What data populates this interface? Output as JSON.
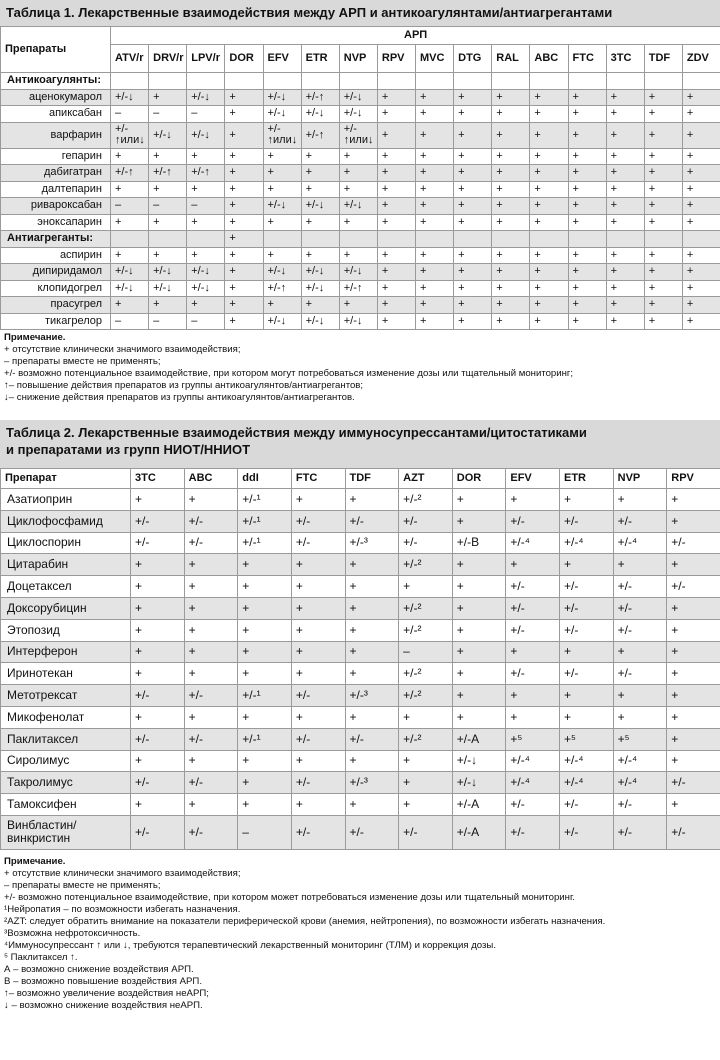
{
  "table1": {
    "title": "Таблица 1. Лекарственные взаимодействия между АРП и антикоагулянтами/антиагрегантами",
    "first_header": "Препараты",
    "group_header": "АРП",
    "columns": [
      "ATV/r",
      "DRV/r",
      "LPV/r",
      "DOR",
      "EFV",
      "ETR",
      "NVP",
      "RPV",
      "MVC",
      "DTG",
      "RAL",
      "ABC",
      "FTC",
      "3TC",
      "TDF",
      "ZDV"
    ],
    "rows": [
      {
        "label": "Антикоагулянты:",
        "section": true,
        "cells": [
          null,
          null,
          null,
          null,
          null,
          null,
          null,
          null,
          null,
          null,
          null,
          null,
          null,
          null,
          null,
          null
        ]
      },
      {
        "label": "аценокумарол",
        "cells": [
          "+/-↓",
          "+",
          "+/-↓",
          "+",
          "+/-↓",
          "+/-↑",
          "+/-↓",
          "+",
          "+",
          "+",
          "+",
          "+",
          "+",
          "+",
          "+",
          "+"
        ]
      },
      {
        "label": "апиксабан",
        "cells": [
          "–",
          "–",
          "–",
          "+",
          "+/-↓",
          "+/-↓",
          "+/-↓",
          "+",
          "+",
          "+",
          "+",
          "+",
          "+",
          "+",
          "+",
          "+"
        ]
      },
      {
        "label": "варфарин",
        "cells": [
          "+/-\n↑или↓",
          "+/-↓",
          "+/-↓",
          "+",
          "+/-\n↑или↓",
          "+/-↑",
          "+/-\n↑или↓",
          "+",
          "+",
          "+",
          "+",
          "+",
          "+",
          "+",
          "+",
          "+"
        ]
      },
      {
        "label": "гепарин",
        "cells": [
          "+",
          "+",
          "+",
          "+",
          "+",
          "+",
          "+",
          "+",
          "+",
          "+",
          "+",
          "+",
          "+",
          "+",
          "+",
          "+"
        ]
      },
      {
        "label": "дабигатран",
        "cells": [
          "+/-↑",
          "+/-↑",
          "+/-↑",
          "+",
          "+",
          "+",
          "+",
          "+",
          "+",
          "+",
          "+",
          "+",
          "+",
          "+",
          "+",
          "+"
        ]
      },
      {
        "label": "далтепарин",
        "cells": [
          "+",
          "+",
          "+",
          "+",
          "+",
          "+",
          "+",
          "+",
          "+",
          "+",
          "+",
          "+",
          "+",
          "+",
          "+",
          "+"
        ]
      },
      {
        "label": "ривароксабан",
        "cells": [
          "–",
          "–",
          "–",
          "+",
          "+/-↓",
          "+/-↓",
          "+/-↓",
          "+",
          "+",
          "+",
          "+",
          "+",
          "+",
          "+",
          "+",
          "+"
        ]
      },
      {
        "label": "эноксапарин",
        "cells": [
          "+",
          "+",
          "+",
          "+",
          "+",
          "+",
          "+",
          "+",
          "+",
          "+",
          "+",
          "+",
          "+",
          "+",
          "+",
          "+"
        ]
      },
      {
        "label": "Антиагреганты:",
        "section": true,
        "cells": [
          null,
          null,
          null,
          "+",
          null,
          null,
          null,
          null,
          null,
          null,
          null,
          null,
          null,
          null,
          null,
          null
        ]
      },
      {
        "label": "аспирин",
        "cells": [
          "+",
          "+",
          "+",
          "+",
          "+",
          "+",
          "+",
          "+",
          "+",
          "+",
          "+",
          "+",
          "+",
          "+",
          "+",
          "+"
        ]
      },
      {
        "label": "дипиридамол",
        "cells": [
          "+/-↓",
          "+/-↓",
          "+/-↓",
          "+",
          "+/-↓",
          "+/-↓",
          "+/-↓",
          "+",
          "+",
          "+",
          "+",
          "+",
          "+",
          "+",
          "+",
          "+"
        ]
      },
      {
        "label": "клопидогрел",
        "cells": [
          "+/-↓",
          "+/-↓",
          "+/-↓",
          "+",
          "+/-↑",
          "+/-↓",
          "+/-↑",
          "+",
          "+",
          "+",
          "+",
          "+",
          "+",
          "+",
          "+",
          "+"
        ]
      },
      {
        "label": "прасугрел",
        "cells": [
          "+",
          "+",
          "+",
          "+",
          "+",
          "+",
          "+",
          "+",
          "+",
          "+",
          "+",
          "+",
          "+",
          "+",
          "+",
          "+"
        ]
      },
      {
        "label": "тикагрелор",
        "cells": [
          "–",
          "–",
          "–",
          "+",
          "+/-↓",
          "+/-↓",
          "+/-↓",
          "+",
          "+",
          "+",
          "+",
          "+",
          "+",
          "+",
          "+",
          "+"
        ]
      }
    ],
    "notes": [
      "Примечание.",
      "+ отсутствие клинически значимого взаимодействия;",
      "– препараты вместе не применять;",
      "+/- возможно потенциальное взаимодействие, при котором могут потребоваться изменение дозы или тщательный мониторинг;",
      "↑– повышение действия препаратов из группы антикоагулянтов/антиагрегантов;",
      "↓– снижение действия препаратов из группы антикоагулянтов/антиагрегантов."
    ]
  },
  "table2": {
    "title": "Таблица 2. Лекарственные взаимодействия между иммуносупрессантами/цитостатиками\nи препаратами из групп  НИОТ/ННИОТ",
    "first_header": "Препарат",
    "columns": [
      "3TC",
      "ABC",
      "ddI",
      "FTC",
      "TDF",
      "AZT",
      "DOR",
      "EFV",
      "ETR",
      "NVP",
      "RPV"
    ],
    "rows": [
      {
        "label": "Азатиоприн",
        "cells": [
          "+",
          "+",
          "+/-¹",
          "+",
          "+",
          "+/-²",
          "+",
          "+",
          "+",
          "+",
          "+"
        ]
      },
      {
        "label": "Циклофосфамид",
        "cells": [
          "+/-",
          "+/-",
          "+/-¹",
          "+/-",
          "+/-",
          "+/-",
          "+",
          "+/-",
          "+/-",
          "+/-",
          "+"
        ]
      },
      {
        "label": "Циклоспорин",
        "cells": [
          "+/-",
          "+/-",
          "+/-¹",
          "+/-",
          "+/-³",
          "+/-",
          "+/-B",
          "+/-⁴",
          "+/-⁴",
          "+/-⁴",
          "+/-"
        ]
      },
      {
        "label": "Цитарабин",
        "cells": [
          "+",
          "+",
          "+",
          "+",
          "+",
          "+/-²",
          "+",
          "+",
          "+",
          "+",
          "+"
        ]
      },
      {
        "label": "Доцетаксел",
        "cells": [
          "+",
          "+",
          "+",
          "+",
          "+",
          "+",
          "+",
          "+/-",
          "+/-",
          "+/-",
          "+/-"
        ]
      },
      {
        "label": "Доксорубицин",
        "cells": [
          "+",
          "+",
          "+",
          "+",
          "+",
          "+/-²",
          "+",
          "+/-",
          "+/-",
          "+/-",
          "+"
        ]
      },
      {
        "label": "Этопозид",
        "cells": [
          "+",
          "+",
          "+",
          "+",
          "+",
          "+/-²",
          "+",
          "+/-",
          "+/-",
          "+/-",
          "+"
        ]
      },
      {
        "label": "Интерферон",
        "cells": [
          "+",
          "+",
          "+",
          "+",
          "+",
          "–",
          "+",
          "+",
          "+",
          "+",
          "+"
        ]
      },
      {
        "label": "Иринотекан",
        "cells": [
          "+",
          "+",
          "+",
          "+",
          "+",
          "+/-²",
          "+",
          "+/-",
          "+/-",
          "+/-",
          "+"
        ]
      },
      {
        "label": "Метотрексат",
        "cells": [
          "+/-",
          "+/-",
          "+/-¹",
          "+/-",
          "+/-³",
          "+/-²",
          "+",
          "+",
          "+",
          "+",
          "+"
        ]
      },
      {
        "label": "Микофенолат",
        "cells": [
          "+",
          "+",
          "+",
          "+",
          "+",
          "+",
          "+",
          "+",
          "+",
          "+",
          "+"
        ]
      },
      {
        "label": "Паклитаксел",
        "cells": [
          "+/-",
          "+/-",
          "+/-¹",
          "+/-",
          "+/-",
          "+/-²",
          "+/-A",
          "+⁵",
          "+⁵",
          "+⁵",
          "+"
        ]
      },
      {
        "label": "Сиролимус",
        "cells": [
          "+",
          "+",
          "+",
          "+",
          "+",
          "+",
          "+/-↓",
          "+/-⁴",
          "+/-⁴",
          "+/-⁴",
          "+"
        ]
      },
      {
        "label": "Такролимус",
        "cells": [
          "+/-",
          "+/-",
          "+",
          "+/-",
          "+/-³",
          "+",
          "+/-↓",
          "+/-⁴",
          "+/-⁴",
          "+/-⁴",
          "+/-"
        ]
      },
      {
        "label": "Тамоксифен",
        "cells": [
          "+",
          "+",
          "+",
          "+",
          "+",
          "+",
          "+/-A",
          "+/-",
          "+/-",
          "+/-",
          "+"
        ]
      },
      {
        "label": "Винбластин/\nвинкристин",
        "cells": [
          "+/-",
          "+/-",
          "–",
          "+/-",
          "+/-",
          "+/-",
          "+/-A",
          "+/-",
          "+/-",
          "+/-",
          "+/-"
        ]
      }
    ],
    "notes": [
      "Примечание.",
      "+ отсутствие клинически значимого взаимодействия;",
      "–  препараты вместе не применять;",
      "+/- возможно потенциальное взаимодействие, при котором может потребоваться изменение дозы или тщательный мониторинг.",
      "¹Нейропатия – по возможности избегать назначения.",
      "²AZT: следует обратить внимание на показатели периферической крови (анемия, нейтропения), по возможности избегать  назначения.",
      "³Возможна нефротоксичность.",
      "⁴Иммуносупрессант ↑ или ↓, требуются терапевтический лекарственный мониторинг (ТЛМ) и коррекция дозы.",
      "⁵ Паклитаксел ↑.",
      "А – возможно снижение воздействия АРП.",
      "В – возможно повышение воздействия АРП.",
      "↑– возможно увеличение воздействия неАРП;",
      "↓ – возможно снижение воздействия неАРП."
    ]
  }
}
